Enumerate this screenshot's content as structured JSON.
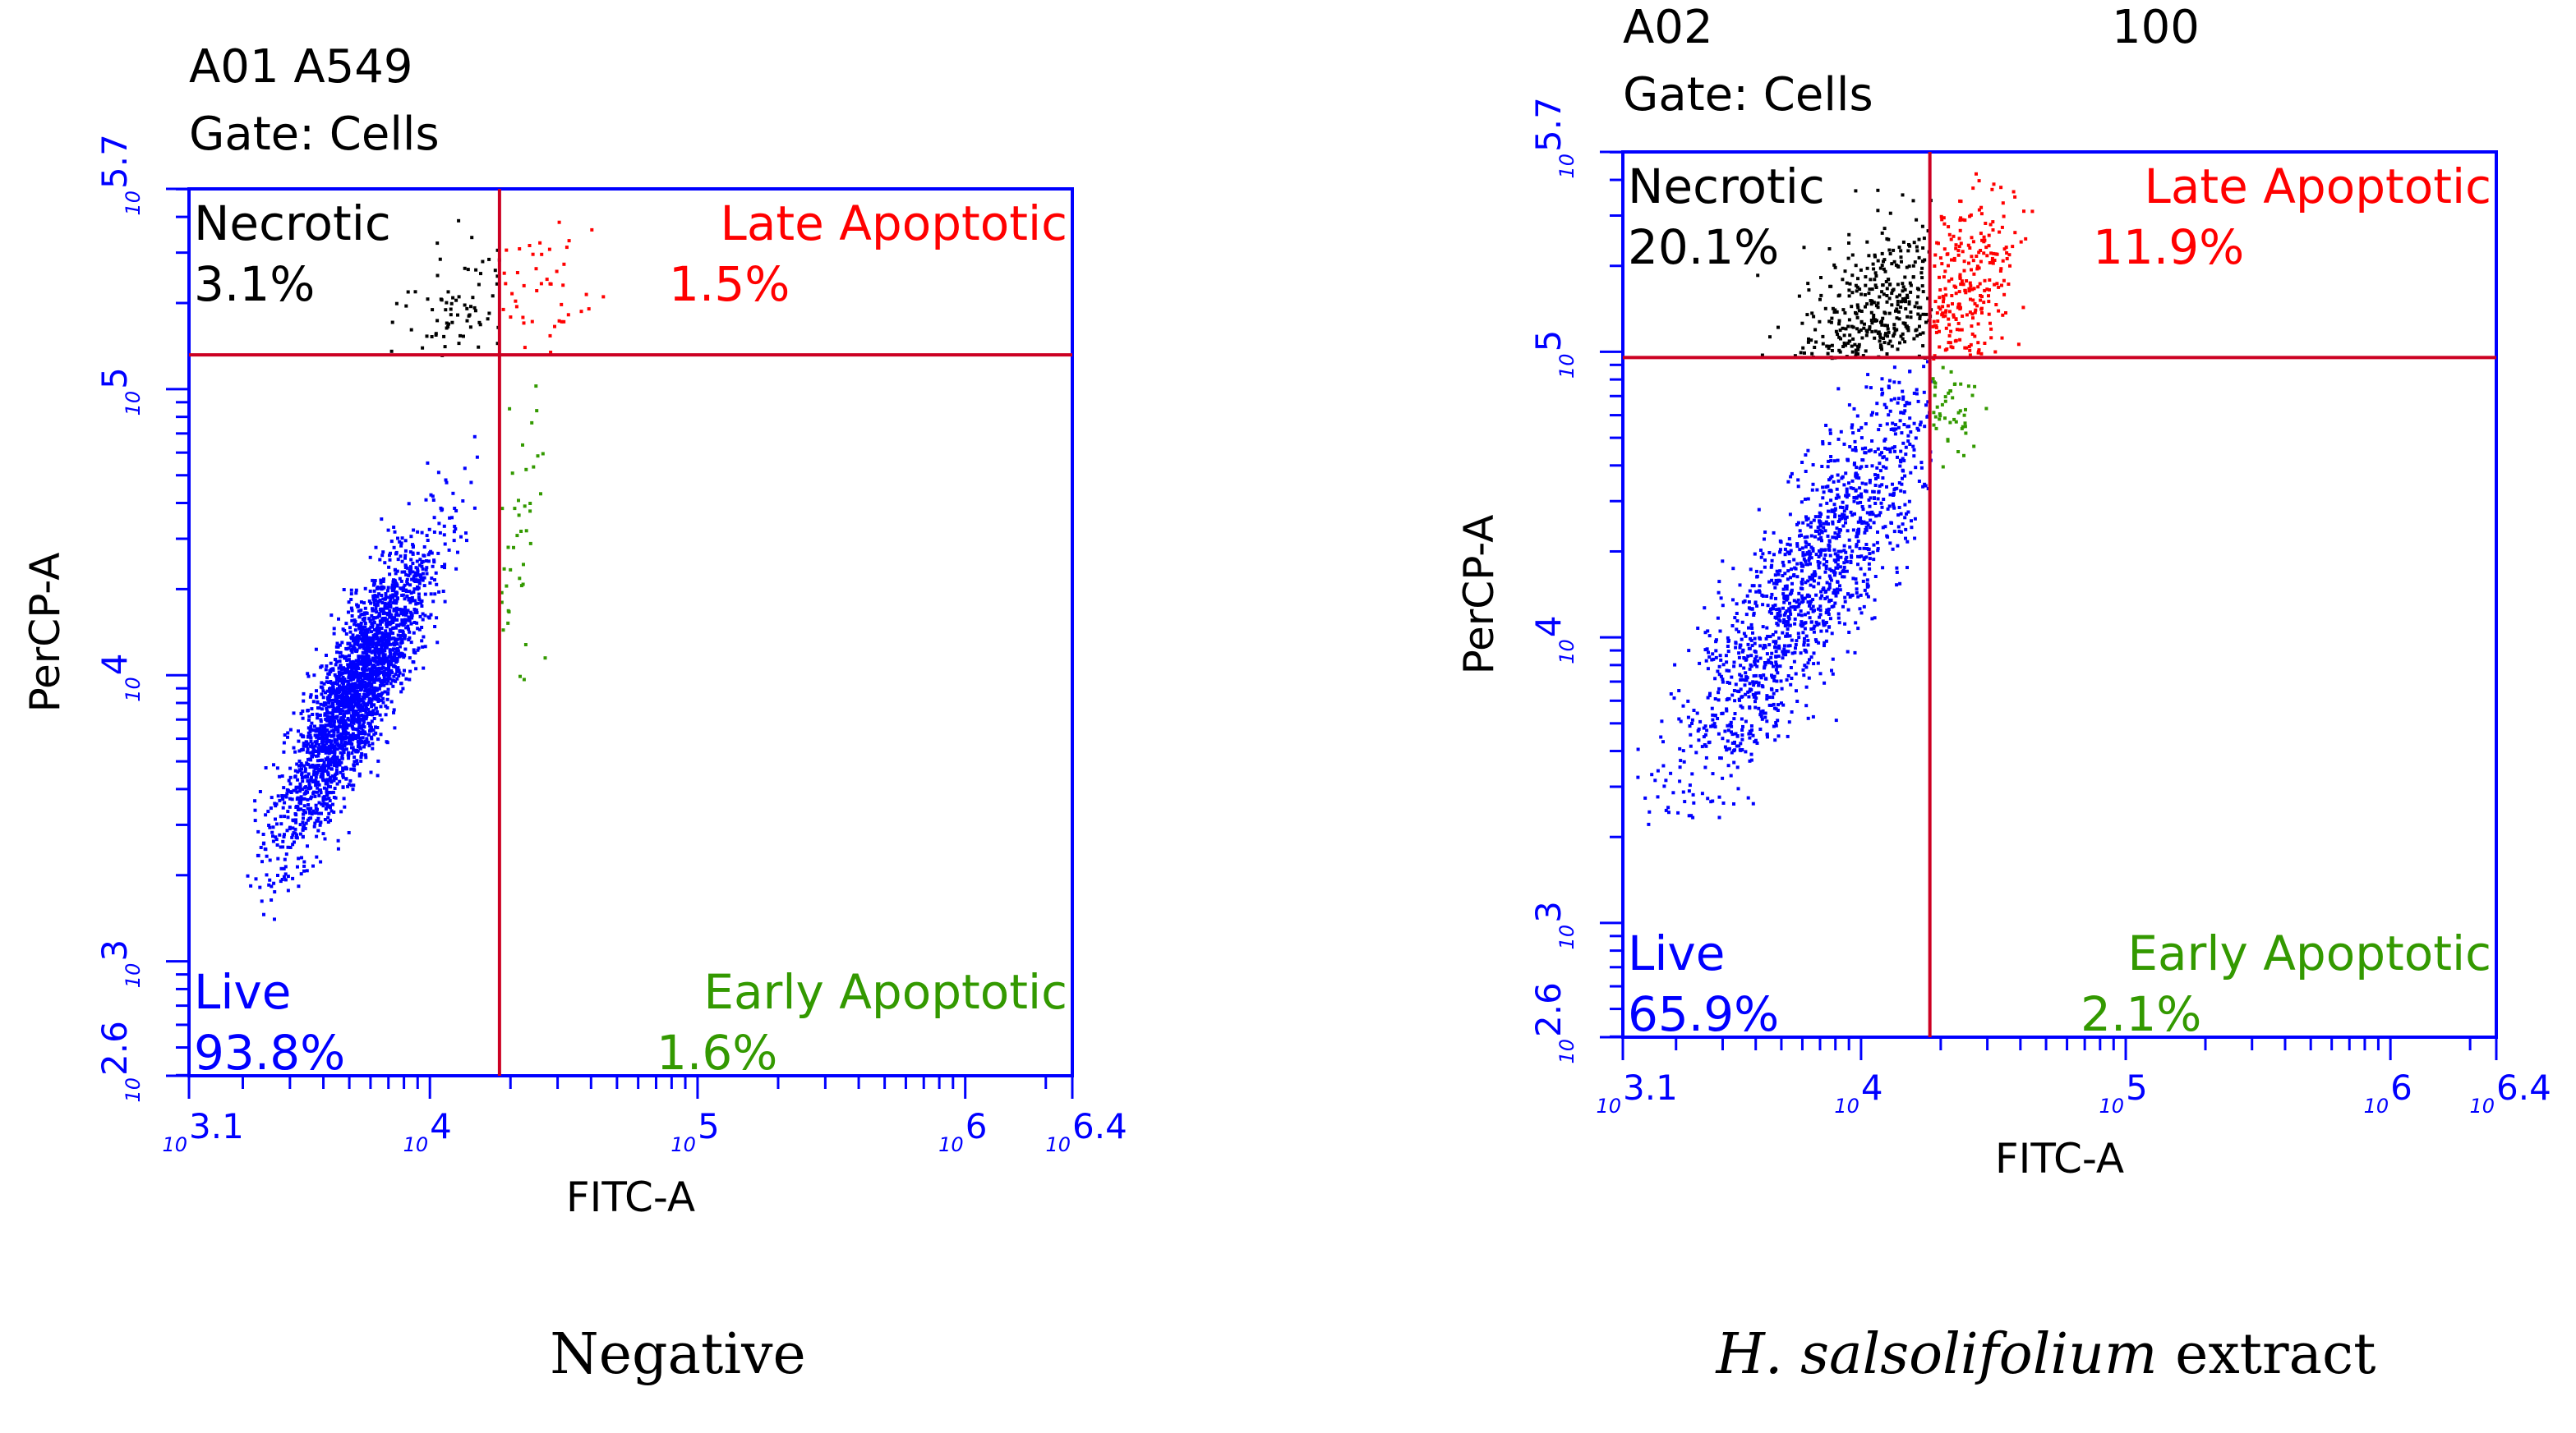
{
  "figure": {
    "captions": [
      "Negative",
      "H. salsolifolium extract"
    ]
  },
  "chart_data": [
    {
      "type": "scatter",
      "sample_id": "A01 A549",
      "gate": "Gate: Cells",
      "top_right_label": "",
      "xlabel": "FITC-A",
      "ylabel": "PerCP-A",
      "x_axis_log10_range": [
        3.1,
        6.4
      ],
      "y_axis_log10_range": [
        2.6,
        5.7
      ],
      "x_tick_labels": [
        "3.1",
        "4",
        "5",
        "6",
        "6.4"
      ],
      "y_tick_labels": [
        "2.6",
        "3",
        "4",
        "5",
        "5.7"
      ],
      "x_gate_log10": 4.26,
      "y_gate_log10": 5.12,
      "caption": "Negative",
      "colors": {
        "Live": "#0000ff",
        "Necrotic": "#000000",
        "Late Apoptotic": "#ff0000",
        "Early Apoptotic": "#339900",
        "frame": "#0000ff",
        "gate": "#cc0022"
      },
      "quadrants": [
        {
          "name": "Necrotic",
          "label": "Necrotic",
          "value": "3.1%",
          "percent": 3.1,
          "position": "top-left",
          "label_color": "#000000"
        },
        {
          "name": "Late Apoptotic",
          "label": "Late Apoptotic",
          "value": "1.5%",
          "percent": 1.5,
          "position": "top-right",
          "label_color": "#ff0000"
        },
        {
          "name": "Live",
          "label": "Live",
          "value": "93.8%",
          "percent": 93.8,
          "position": "bottom-left",
          "label_color": "#0000ff"
        },
        {
          "name": "Early Apoptotic",
          "label": "Early Apoptotic",
          "value": "1.6%",
          "percent": 1.6,
          "position": "bottom-right",
          "label_color": "#339900"
        }
      ],
      "populations": [
        {
          "quadrant": "Live",
          "count": 2600,
          "center": [
            3.72,
            3.95
          ],
          "sx": 0.14,
          "sy": 0.26,
          "corr": 0.85,
          "xlim": [
            3.3,
            4.26
          ],
          "ylim": [
            3.1,
            5.12
          ]
        },
        {
          "quadrant": "Necrotic",
          "count": 95,
          "center": [
            4.1,
            5.3
          ],
          "sx": 0.12,
          "sy": 0.15,
          "corr": 0.4,
          "xlim": [
            3.75,
            4.26
          ],
          "ylim": [
            5.12,
            5.62
          ]
        },
        {
          "quadrant": "Late Apoptotic",
          "count": 55,
          "center": [
            4.38,
            5.32
          ],
          "sx": 0.1,
          "sy": 0.17,
          "corr": 0.2,
          "xlim": [
            4.26,
            4.7
          ],
          "ylim": [
            5.12,
            5.65
          ]
        },
        {
          "quadrant": "Early Apoptotic",
          "count": 55,
          "center": [
            4.33,
            4.5
          ],
          "sx": 0.05,
          "sy": 0.4,
          "corr": 0.0,
          "xlim": [
            4.26,
            4.6
          ],
          "ylim": [
            3.95,
            5.12
          ]
        }
      ]
    },
    {
      "type": "scatter",
      "sample_id": "A02",
      "gate": "Gate: Cells",
      "top_right_label": "100",
      "xlabel": "FITC-A",
      "ylabel": "PerCP-A",
      "x_axis_log10_range": [
        3.1,
        6.4
      ],
      "y_axis_log10_range": [
        2.6,
        5.7
      ],
      "x_tick_labels": [
        "3.1",
        "4",
        "5",
        "6",
        "6.4"
      ],
      "y_tick_labels": [
        "2.6",
        "3",
        "4",
        "5",
        "5.7"
      ],
      "x_gate_log10": 4.26,
      "y_gate_log10": 4.98,
      "caption": "H. salsolifolium extract",
      "colors": {
        "Live": "#0000ff",
        "Necrotic": "#000000",
        "Late Apoptotic": "#ff0000",
        "Early Apoptotic": "#339900",
        "frame": "#0000ff",
        "gate": "#cc0022"
      },
      "quadrants": [
        {
          "name": "Necrotic",
          "label": "Necrotic",
          "value": "20.1%",
          "percent": 20.1,
          "position": "top-left",
          "label_color": "#000000"
        },
        {
          "name": "Late Apoptotic",
          "label": "Late Apoptotic",
          "value": "11.9%",
          "percent": 11.9,
          "position": "top-right",
          "label_color": "#ff0000"
        },
        {
          "name": "Live",
          "label": "Live",
          "value": "65.9%",
          "percent": 65.9,
          "position": "bottom-left",
          "label_color": "#0000ff"
        },
        {
          "name": "Early Apoptotic",
          "label": "Early Apoptotic",
          "value": "2.1%",
          "percent": 2.1,
          "position": "bottom-right",
          "label_color": "#339900"
        }
      ],
      "populations": [
        {
          "quadrant": "Live",
          "count": 1500,
          "center": [
            3.8,
            4.2
          ],
          "sx": 0.26,
          "sy": 0.38,
          "corr": 0.88,
          "xlim": [
            3.1,
            4.26
          ],
          "ylim": [
            3.35,
            4.98
          ]
        },
        {
          "quadrant": "Necrotic",
          "count": 560,
          "center": [
            4.08,
            5.12
          ],
          "sx": 0.16,
          "sy": 0.18,
          "corr": 0.45,
          "xlim": [
            3.5,
            4.26
          ],
          "ylim": [
            4.98,
            5.68
          ]
        },
        {
          "quadrant": "Late Apoptotic",
          "count": 330,
          "center": [
            4.38,
            5.2
          ],
          "sx": 0.1,
          "sy": 0.18,
          "corr": 0.3,
          "xlim": [
            4.26,
            4.74
          ],
          "ylim": [
            4.98,
            5.68
          ]
        },
        {
          "quadrant": "Early Apoptotic",
          "count": 55,
          "center": [
            4.32,
            4.84
          ],
          "sx": 0.05,
          "sy": 0.08,
          "corr": 0.0,
          "xlim": [
            4.26,
            4.52
          ],
          "ylim": [
            4.6,
            4.98
          ]
        }
      ]
    }
  ]
}
